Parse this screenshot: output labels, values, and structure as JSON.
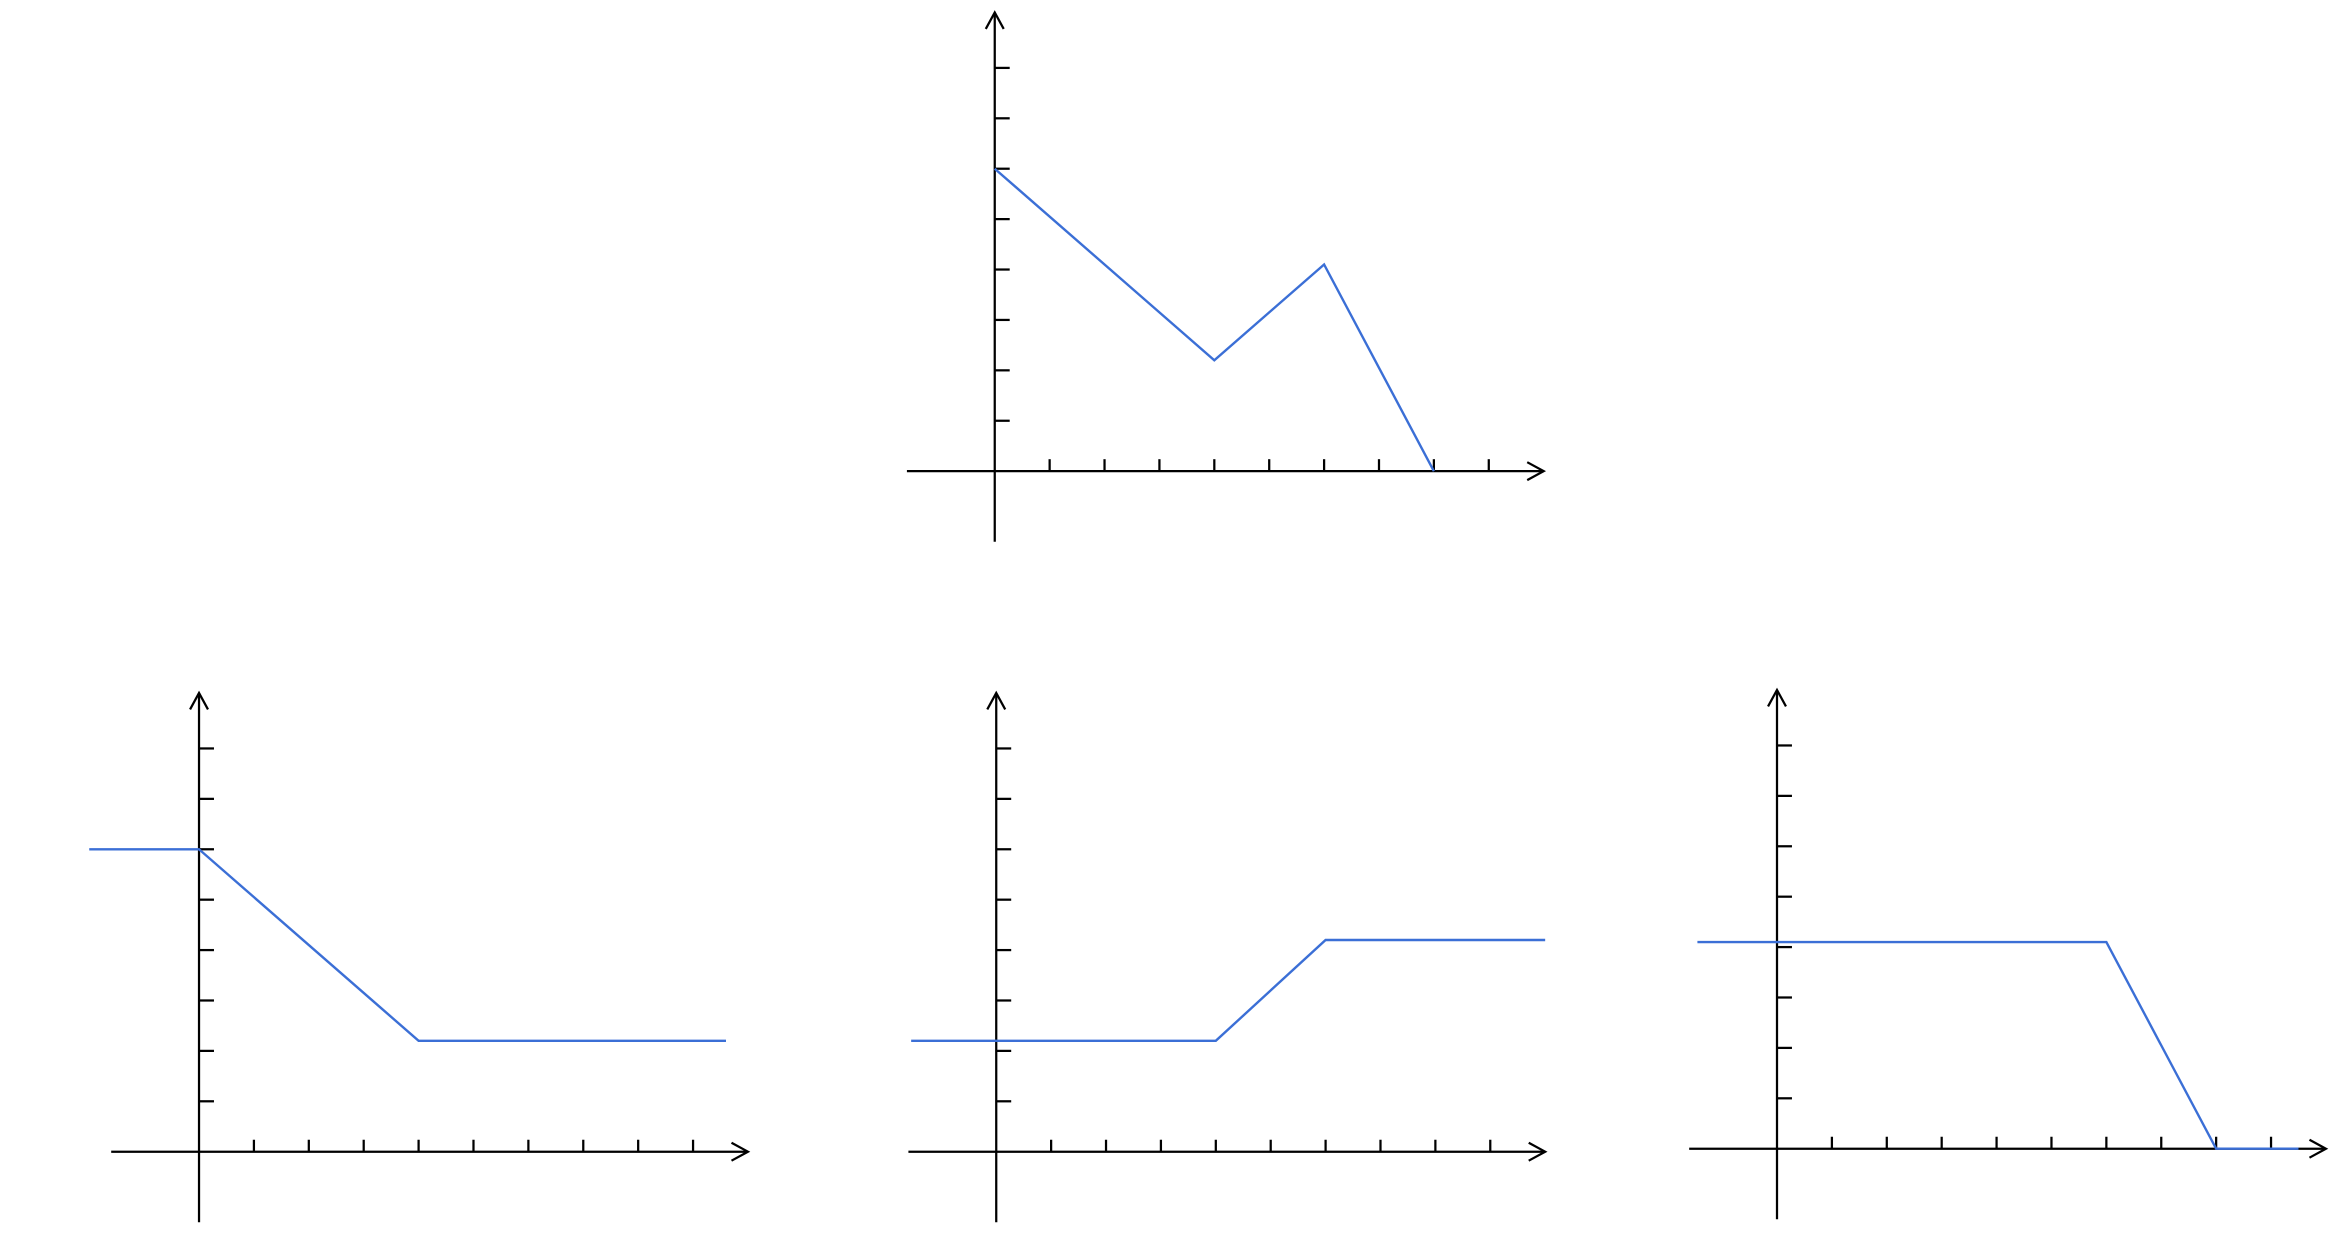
{
  "chart_data": [
    {
      "type": "line",
      "x": [
        0,
        4,
        6,
        8
      ],
      "values": [
        6,
        2.2,
        4.1,
        0
      ],
      "color": "#3b6fd6",
      "xlim": [
        -1.6,
        10
      ],
      "ylim": [
        -1.4,
        9.1
      ],
      "xticks": [
        1,
        2,
        3,
        4,
        5,
        6,
        7,
        8,
        9
      ],
      "yticks": [
        1,
        2,
        3,
        4,
        5,
        6,
        7,
        8
      ]
    },
    {
      "type": "line",
      "x": [
        -2,
        0,
        4,
        9.6
      ],
      "values": [
        6,
        6,
        2.2,
        2.2
      ],
      "color": "#3b6fd6",
      "xlim": [
        -1.6,
        10
      ],
      "ylim": [
        -1.4,
        9.1
      ],
      "xticks": [
        1,
        2,
        3,
        4,
        5,
        6,
        7,
        8,
        9
      ],
      "yticks": [
        1,
        2,
        3,
        4,
        5,
        6,
        7,
        8
      ]
    },
    {
      "type": "line",
      "x": [
        -1.55,
        4,
        6,
        10
      ],
      "values": [
        2.2,
        2.2,
        4.2,
        4.2
      ],
      "color": "#3b6fd6",
      "xlim": [
        -1.6,
        10
      ],
      "ylim": [
        -1.4,
        9.1
      ],
      "xticks": [
        1,
        2,
        3,
        4,
        5,
        6,
        7,
        8,
        9
      ],
      "yticks": [
        1,
        2,
        3,
        4,
        5,
        6,
        7,
        8
      ]
    },
    {
      "type": "line",
      "x": [
        -1.45,
        6,
        8,
        9.5
      ],
      "values": [
        4.1,
        4.1,
        0,
        0
      ],
      "color": "#3b6fd6",
      "xlim": [
        -1.6,
        10
      ],
      "ylim": [
        -1.4,
        9.1
      ],
      "xticks": [
        1,
        2,
        3,
        4,
        5,
        6,
        7,
        8,
        9
      ],
      "yticks": [
        1,
        2,
        3,
        4,
        5,
        6,
        7,
        8
      ]
    }
  ]
}
